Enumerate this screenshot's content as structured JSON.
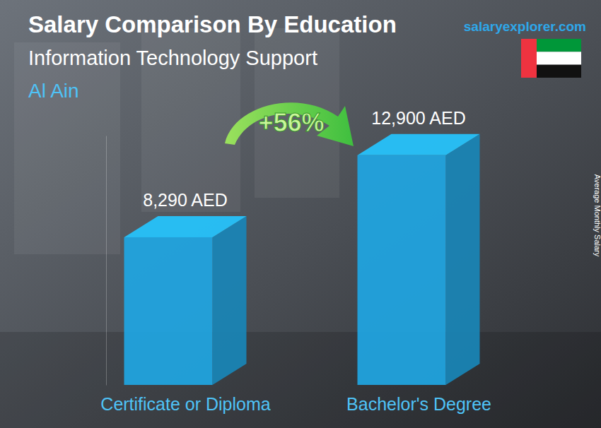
{
  "chart_data": {
    "type": "bar",
    "title": "Salary Comparison By Education",
    "subtitle": "Information Technology Support",
    "annotations": [
      "Al Ain",
      "+56%",
      "salaryexplorer.com"
    ],
    "y_label": "Average Monthly Salary",
    "categories": [
      "Certificate or Diploma",
      "Bachelor's Degree"
    ],
    "values": [
      8290,
      12900
    ],
    "value_labels": [
      "8,290 AED",
      "12,900 AED"
    ],
    "color": "#1fa6e3",
    "ylim": [
      0,
      14000
    ],
    "tick_labels": false,
    "data_labels": true,
    "grid": false
  }
}
